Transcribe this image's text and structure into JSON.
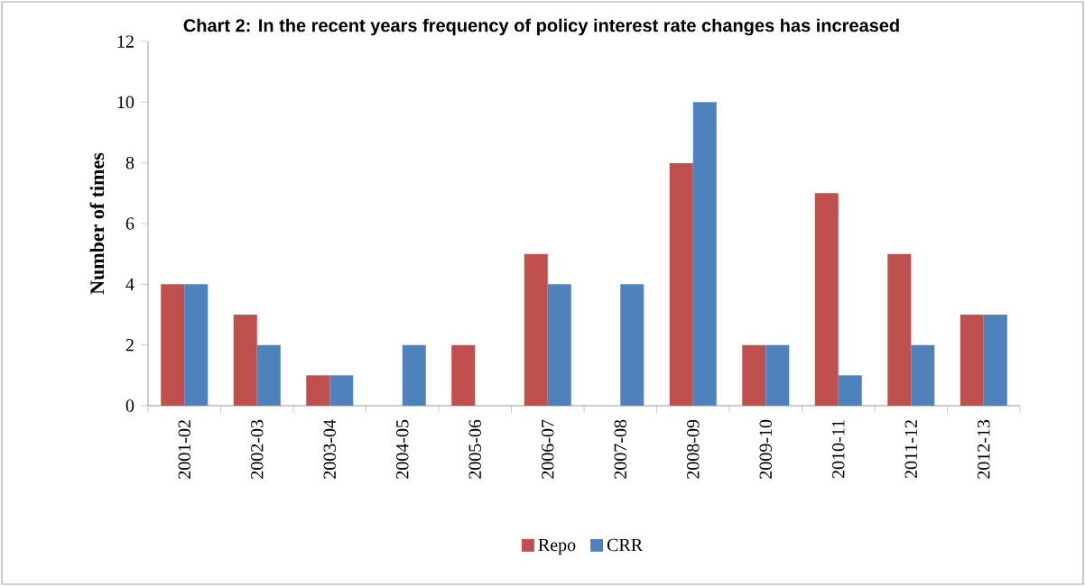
{
  "chart_data": {
    "type": "bar",
    "title": "Chart 2: In the recent years frequency of policy interest rate changes has increased",
    "ylabel": "Number of times",
    "categories": [
      "2001-02",
      "2002-03",
      "2003-04",
      "2004-05",
      "2005-06",
      "2006-07",
      "2007-08",
      "2008-09",
      "2009-10",
      "2010-11",
      "2011-12",
      "2012-13"
    ],
    "series": [
      {
        "name": "Repo",
        "color": "#c0504d",
        "values": [
          4,
          3,
          1,
          0,
          2,
          5,
          0,
          8,
          2,
          7,
          5,
          3
        ]
      },
      {
        "name": "CRR",
        "color": "#4f81bd",
        "values": [
          4,
          2,
          1,
          2,
          0,
          4,
          4,
          10,
          2,
          1,
          2,
          3
        ]
      }
    ],
    "ylim": [
      0,
      12
    ],
    "yticks": [
      0,
      2,
      4,
      6,
      8,
      10,
      12
    ],
    "grid": false,
    "legend": "bottom"
  }
}
